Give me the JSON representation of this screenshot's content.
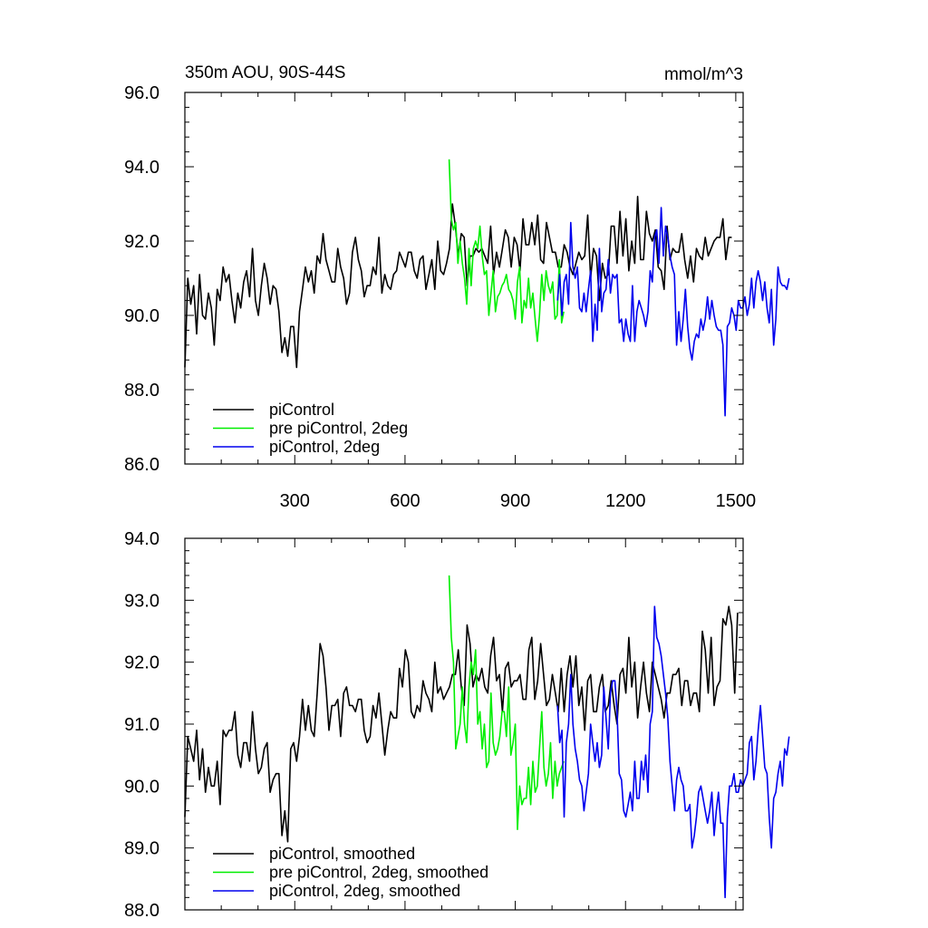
{
  "header": {
    "title": "350m AOU, 90S-44S",
    "units": "mmol/m^3"
  },
  "colors": {
    "piControl": "#000000",
    "pre_piControl_2deg": "#00ee00",
    "piControl_2deg": "#0000ee"
  },
  "chart_data": [
    {
      "type": "line",
      "title": "350m AOU, 90S-44S",
      "ylabel": "mmol/m^3",
      "xlim": [
        1,
        1520
      ],
      "ylim": [
        86.0,
        96.0
      ],
      "xticks": [
        300,
        600,
        900,
        1200,
        1500
      ],
      "yticks": [
        86.0,
        88.0,
        90.0,
        92.0,
        94.0,
        96.0
      ],
      "ytick_labels": [
        "86.0",
        "88.0",
        "90.0",
        "92.0",
        "94.0",
        "96.0"
      ],
      "xtick_labels": [
        "300",
        "600",
        "900",
        "1200",
        "1500"
      ],
      "legend": [
        "piControl",
        "pre piControl, 2deg",
        "piControl, 2deg"
      ],
      "legend_position": "bottom-left",
      "series": [
        {
          "name": "piControl",
          "color": "#000000",
          "x_start": 1,
          "x_step": 8,
          "values": [
            88.6,
            91.0,
            90.3,
            90.8,
            89.5,
            91.1,
            90.0,
            89.9,
            90.6,
            90.2,
            89.2,
            90.7,
            90.4,
            91.3,
            90.9,
            91.1,
            90.4,
            89.8,
            90.6,
            90.2,
            90.9,
            91.2,
            90.5,
            91.8,
            90.4,
            90.0,
            90.8,
            91.4,
            91.0,
            90.3,
            90.8,
            90.7,
            90.1,
            89.0,
            89.4,
            88.9,
            89.7,
            89.7,
            88.6,
            90.1,
            90.7,
            91.3,
            90.9,
            91.2,
            90.6,
            91.6,
            91.4,
            92.2,
            91.5,
            91.2,
            90.9,
            90.9,
            91.8,
            91.3,
            91.0,
            90.3,
            90.6,
            91.7,
            92.1,
            91.5,
            91.2,
            90.5,
            90.8,
            90.8,
            91.3,
            91.1,
            92.1,
            90.6,
            91.1,
            90.8,
            90.7,
            91.1,
            91.2,
            91.7,
            91.5,
            91.3,
            91.7,
            91.7,
            91.2,
            91.0,
            91.5,
            91.6,
            90.7,
            91.1,
            91.5,
            90.7,
            92.0,
            91.2,
            91.1,
            91.4,
            91.8,
            93.0,
            92.4,
            91.6,
            92.2,
            92.1,
            90.8,
            91.6,
            91.6,
            91.8,
            91.7,
            91.8,
            91.6,
            91.4,
            92.4,
            91.1,
            91.7,
            91.3,
            91.8,
            92.3,
            92.1,
            91.3,
            92.1,
            91.9,
            91.2,
            92.6,
            91.9,
            91.9,
            92.5,
            91.9,
            92.7,
            91.5,
            91.4,
            92.5,
            92.1,
            91.7,
            91.7,
            91.3,
            91.3,
            91.9,
            91.7,
            91.3,
            91.1,
            91.4,
            91.7,
            91.5,
            91.6,
            92.7,
            91.0,
            91.8,
            91.6,
            90.4,
            91.4,
            91.0,
            91.1,
            92.4,
            92.4,
            91.4,
            92.8,
            91.6,
            92.6,
            91.2,
            92.0,
            91.4,
            93.2,
            91.5,
            91.5,
            92.8,
            92.2,
            92.0,
            92.3,
            91.3,
            91.2,
            90.7,
            92.4,
            91.5,
            91.8,
            91.7,
            91.7,
            92.2,
            91.5,
            91.0,
            91.6,
            90.9,
            91.8,
            91.6,
            91.5,
            92.1,
            91.6,
            91.8,
            92.0,
            92.1,
            92.1,
            92.6,
            91.5,
            92.1,
            92.1
          ]
        },
        {
          "name": "pre piControl, 2deg",
          "color": "#00ee00",
          "x_start": 720,
          "x_step": 6,
          "values": [
            94.2,
            92.6,
            92.3,
            92.5,
            91.4,
            92.0,
            91.4,
            91.0,
            90.3,
            91.8,
            90.8,
            91.8,
            92.0,
            91.8,
            92.4,
            91.6,
            91.1,
            91.2,
            90.0,
            90.6,
            91.2,
            90.1,
            90.5,
            90.6,
            90.8,
            90.9,
            91.1,
            90.7,
            90.6,
            90.4,
            89.9,
            90.9,
            91.3,
            89.8,
            90.4,
            90.2,
            91.0,
            90.2,
            90.6,
            89.9,
            89.3,
            90.0,
            91.1,
            90.4,
            91.2,
            90.8,
            90.6,
            90.9,
            89.9,
            90.0,
            91.5,
            89.8,
            90.1
          ]
        },
        {
          "name": "piControl, 2deg",
          "color": "#0000ee",
          "x_start": 1015,
          "x_step": 6,
          "values": [
            90.4,
            91.1,
            90.0,
            90.9,
            91.1,
            90.3,
            92.5,
            91.3,
            91.0,
            91.3,
            90.2,
            90.1,
            90.6,
            90.1,
            90.7,
            91.2,
            89.3,
            90.3,
            89.6,
            91.8,
            90.1,
            90.6,
            90.7,
            91.5,
            90.6,
            91.1,
            91.0,
            91.1,
            89.8,
            89.9,
            89.3,
            89.9,
            89.5,
            89.3,
            90.8,
            89.3,
            90.1,
            90.4,
            90.2,
            90.0,
            89.7,
            90.1,
            91.2,
            90.9,
            92.1,
            92.3,
            91.4,
            92.9,
            91.6,
            92.4,
            92.1,
            91.6,
            91.3,
            91.1,
            89.2,
            90.1,
            89.3,
            89.9,
            90.7,
            89.7,
            89.1,
            88.8,
            89.3,
            89.5,
            89.4,
            89.9,
            89.6,
            89.9,
            90.5,
            89.9,
            90.4,
            90.0,
            89.7,
            89.6,
            89.6,
            89.2,
            87.3,
            89.7,
            89.8,
            90.2,
            90.0,
            89.6,
            90.4,
            90.2,
            90.2,
            90.5,
            90.0,
            90.3,
            91.0,
            90.2,
            90.9,
            91.2,
            90.9,
            90.4,
            90.9,
            90.2,
            89.8,
            90.7,
            89.2,
            89.9,
            91.3,
            90.9,
            90.8,
            90.8,
            90.7,
            91.0
          ]
        }
      ]
    },
    {
      "type": "line",
      "title": "",
      "ylabel": "",
      "xlim": [
        1,
        1520
      ],
      "ylim": [
        88.0,
        94.0
      ],
      "xticks": [
        300,
        600,
        900,
        1200,
        1500
      ],
      "yticks": [
        88.0,
        89.0,
        90.0,
        91.0,
        92.0,
        93.0,
        94.0
      ],
      "ytick_labels": [
        "88.0",
        "89.0",
        "90.0",
        "91.0",
        "92.0",
        "93.0",
        "94.0"
      ],
      "legend": [
        "piControl, smoothed",
        "pre piControl, 2deg, smoothed",
        "piControl, 2deg, smoothed"
      ],
      "legend_position": "bottom-left",
      "series": [
        {
          "name": "piControl, smoothed",
          "color": "#000000",
          "x_start": 1,
          "x_step": 8,
          "values": [
            89.5,
            90.8,
            90.6,
            90.4,
            90.9,
            90.1,
            90.6,
            89.9,
            90.3,
            90.0,
            90.0,
            90.4,
            89.7,
            90.9,
            90.8,
            90.9,
            90.9,
            91.2,
            90.5,
            90.3,
            90.7,
            90.7,
            90.4,
            91.2,
            90.6,
            90.2,
            90.3,
            90.6,
            90.7,
            89.9,
            90.1,
            90.2,
            90.2,
            89.2,
            89.6,
            89.1,
            90.6,
            90.7,
            90.4,
            90.8,
            91.4,
            90.9,
            91.3,
            90.9,
            90.8,
            91.5,
            92.3,
            92.1,
            91.6,
            90.9,
            91.3,
            91.3,
            91.4,
            90.8,
            91.5,
            91.6,
            91.3,
            91.3,
            91.2,
            91.4,
            91.4,
            90.9,
            90.7,
            90.8,
            91.3,
            91.1,
            91.5,
            91.0,
            90.5,
            90.9,
            91.2,
            91.1,
            91.1,
            91.9,
            91.6,
            92.2,
            92.0,
            91.2,
            91.1,
            91.3,
            91.2,
            91.7,
            91.5,
            91.4,
            91.2,
            92.0,
            91.5,
            91.6,
            91.4,
            91.5,
            91.6,
            91.8,
            91.8,
            92.2,
            91.6,
            91.3,
            92.6,
            92.3,
            91.6,
            91.8,
            91.7,
            91.9,
            91.6,
            91.5,
            92.1,
            92.4,
            91.7,
            91.8,
            91.2,
            91.9,
            92.0,
            91.6,
            91.7,
            91.7,
            91.8,
            91.4,
            91.4,
            92.2,
            92.4,
            91.4,
            91.7,
            92.3,
            91.8,
            91.3,
            91.4,
            91.8,
            91.5,
            91.2,
            91.9,
            91.2,
            91.8,
            92.1,
            91.6,
            92.1,
            91.3,
            91.6,
            90.9,
            91.7,
            91.8,
            91.2,
            91.2,
            91.6,
            91.8,
            91.2,
            91.3,
            91.7,
            91.3,
            91.0,
            91.8,
            91.9,
            91.5,
            92.4,
            91.6,
            92.0,
            91.1,
            91.6,
            92.0,
            91.5,
            91.2,
            92.0,
            91.8,
            91.6,
            91.4,
            91.1,
            91.5,
            91.5,
            91.8,
            91.8,
            91.9,
            91.3,
            91.7,
            91.7,
            91.3,
            91.5,
            91.5,
            91.2,
            92.5,
            92.2,
            91.5,
            92.4,
            91.3,
            91.6,
            91.7,
            92.7,
            92.6,
            92.9,
            92.6,
            91.5,
            92.8
          ]
        },
        {
          "name": "pre piControl, 2deg, smoothed",
          "color": "#00ee00",
          "x_start": 720,
          "x_step": 6,
          "values": [
            93.4,
            92.4,
            92.0,
            90.6,
            90.8,
            91.0,
            91.6,
            91.0,
            90.7,
            91.6,
            92.0,
            91.8,
            92.2,
            91.0,
            91.2,
            90.6,
            91.0,
            90.3,
            90.4,
            91.5,
            90.7,
            90.5,
            90.6,
            90.8,
            91.2,
            91.2,
            90.8,
            91.6,
            90.5,
            90.7,
            91.0,
            89.3,
            90.0,
            89.7,
            89.8,
            89.8,
            90.3,
            89.7,
            90.4,
            89.9,
            90.0,
            90.6,
            91.2,
            90.3,
            90.0,
            90.2,
            90.7,
            89.8,
            90.4,
            90.0,
            90.2,
            90.3,
            90.4
          ]
        },
        {
          "name": "piControl, 2deg, smoothed",
          "color": "#0000ee",
          "x_start": 1015,
          "x_step": 6,
          "values": [
            91.3,
            90.7,
            90.9,
            89.5,
            90.7,
            91.0,
            91.8,
            91.0,
            90.6,
            90.4,
            90.1,
            90.0,
            89.6,
            89.9,
            90.2,
            91.0,
            90.7,
            90.4,
            90.7,
            90.3,
            90.5,
            91.6,
            91.1,
            90.6,
            91.5,
            91.7,
            91.7,
            91.2,
            90.2,
            90.1,
            89.6,
            89.5,
            89.7,
            89.9,
            89.6,
            90.4,
            89.8,
            89.8,
            90.4,
            90.1,
            90.5,
            89.9,
            91.0,
            91.2,
            92.9,
            92.4,
            92.3,
            92.1,
            91.8,
            91.5,
            91.1,
            90.4,
            90.0,
            89.6,
            90.1,
            90.3,
            90.1,
            90.0,
            89.6,
            89.6,
            89.7,
            89.0,
            89.2,
            89.5,
            89.9,
            90.0,
            89.8,
            89.6,
            89.4,
            89.6,
            89.9,
            89.2,
            89.6,
            89.9,
            89.4,
            89.4,
            88.2,
            89.5,
            90.0,
            90.0,
            90.2,
            89.9,
            89.9,
            90.1,
            90.0,
            90.1,
            90.2,
            90.7,
            90.8,
            90.1,
            90.4,
            90.9,
            91.3,
            90.8,
            90.3,
            90.2,
            89.5,
            89.0,
            89.8,
            89.9,
            90.2,
            90.4,
            90.0,
            90.6,
            90.5,
            90.8
          ]
        }
      ]
    }
  ]
}
